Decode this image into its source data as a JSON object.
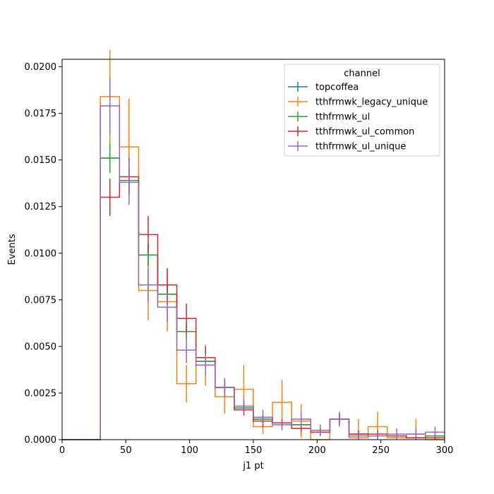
{
  "chart_data": {
    "type": "histogram-step",
    "xlabel": "j1 pt",
    "ylabel": "Events",
    "xlim": [
      0,
      300
    ],
    "ylim": [
      0,
      0.0204
    ],
    "x_ticks": [
      0,
      50,
      100,
      150,
      200,
      250,
      300
    ],
    "x_tick_labels": [
      "0",
      "50",
      "100",
      "150",
      "200",
      "250",
      "300"
    ],
    "y_ticks": [
      0,
      0.0025,
      0.005,
      0.0075,
      0.01,
      0.0125,
      0.015,
      0.0175,
      0.02
    ],
    "y_tick_labels": [
      "0.0000",
      "0.0025",
      "0.0050",
      "0.0075",
      "0.0100",
      "0.0125",
      "0.0150",
      "0.0175",
      "0.0200"
    ],
    "bin_edges": [
      0,
      15,
      30,
      45,
      60,
      75,
      90,
      105,
      120,
      135,
      150,
      165,
      180,
      195,
      210,
      225,
      240,
      255,
      270,
      285,
      300
    ],
    "legend": {
      "title": "channel",
      "location": "top-right"
    },
    "series": [
      {
        "name": "topcoffea",
        "color": "#1f77b4",
        "values": [
          0,
          0,
          0.0151,
          0.0139,
          0.0099,
          0.0078,
          0.0058,
          0.0042,
          0.0028,
          0.0017,
          0.0011,
          0.0009,
          0.0008,
          0.0005,
          0.0011,
          0.0003,
          0.0002,
          0.0002,
          0.0001,
          0.0002
        ],
        "errors": [
          0,
          0,
          0.0008,
          0.0007,
          0.0006,
          0.0005,
          0.0004,
          0.0004,
          0.0003,
          0.0002,
          0.0002,
          0.0002,
          0.0002,
          0.0001,
          0.0002,
          0.0001,
          0.0001,
          0.0001,
          0.0001,
          0.0001
        ]
      },
      {
        "name": "tthfrmwk_legacy_unique",
        "color": "#ff7f0e",
        "values": [
          0,
          0,
          0.0184,
          0.0157,
          0.008,
          0.0074,
          0.003,
          0.004,
          0.0023,
          0.0027,
          0.0007,
          0.002,
          0.001,
          0.0,
          0.0011,
          0.0001,
          0.0007,
          0.0001,
          0.0003,
          0.0
        ],
        "errors": [
          0,
          0,
          0.0025,
          0.0026,
          0.0016,
          0.0016,
          0.001,
          0.0011,
          0.0009,
          0.0013,
          0.0004,
          0.0012,
          0.0009,
          0.0,
          0.0003,
          0.001,
          0.0008,
          0.0001,
          0.0008,
          0.0
        ]
      },
      {
        "name": "tthfrmwk_ul",
        "color": "#2ca02c",
        "values": [
          0,
          0,
          0.0151,
          0.0139,
          0.0099,
          0.0078,
          0.0058,
          0.0042,
          0.0028,
          0.0017,
          0.0011,
          0.0009,
          0.0008,
          0.0005,
          0.0011,
          0.0003,
          0.0002,
          0.0002,
          0.0001,
          0.0002
        ],
        "errors": [
          0,
          0,
          0.0008,
          0.0007,
          0.0006,
          0.0005,
          0.0004,
          0.0004,
          0.0003,
          0.0002,
          0.0002,
          0.0002,
          0.0002,
          0.0001,
          0.0002,
          0.0001,
          0.0001,
          0.0001,
          0.0001,
          0.0001
        ]
      },
      {
        "name": "tthfrmwk_ul_common",
        "color": "#d62728",
        "values": [
          0,
          0,
          0.013,
          0.0141,
          0.011,
          0.0083,
          0.0065,
          0.0044,
          0.0028,
          0.0016,
          0.001,
          0.0009,
          0.0006,
          0.0004,
          0.0011,
          0.0003,
          0.0003,
          0.0002,
          0.0001,
          0.0001
        ],
        "errors": [
          0,
          0,
          0.001,
          0.001,
          0.001,
          0.0009,
          0.0008,
          0.0006,
          0.0005,
          0.0003,
          0.0003,
          0.0002,
          0.0002,
          0.0002,
          0.0003,
          0.0002,
          0.0002,
          0.0001,
          0.0001,
          0.0001
        ]
      },
      {
        "name": "tthfrmwk_ul_unique",
        "color": "#9467bd",
        "values": [
          0,
          0,
          0.0179,
          0.0138,
          0.0083,
          0.0071,
          0.0048,
          0.004,
          0.0028,
          0.0018,
          0.0012,
          0.0008,
          0.0011,
          0.0005,
          0.0011,
          0.0002,
          0.0002,
          0.0003,
          0.0003,
          0.0004
        ],
        "errors": [
          0,
          0,
          0.0015,
          0.0012,
          0.0009,
          0.0008,
          0.0007,
          0.0006,
          0.0005,
          0.0004,
          0.0004,
          0.0003,
          0.0004,
          0.0003,
          0.0004,
          0.0002,
          0.0002,
          0.0003,
          0.0003,
          0.0003
        ]
      }
    ]
  }
}
